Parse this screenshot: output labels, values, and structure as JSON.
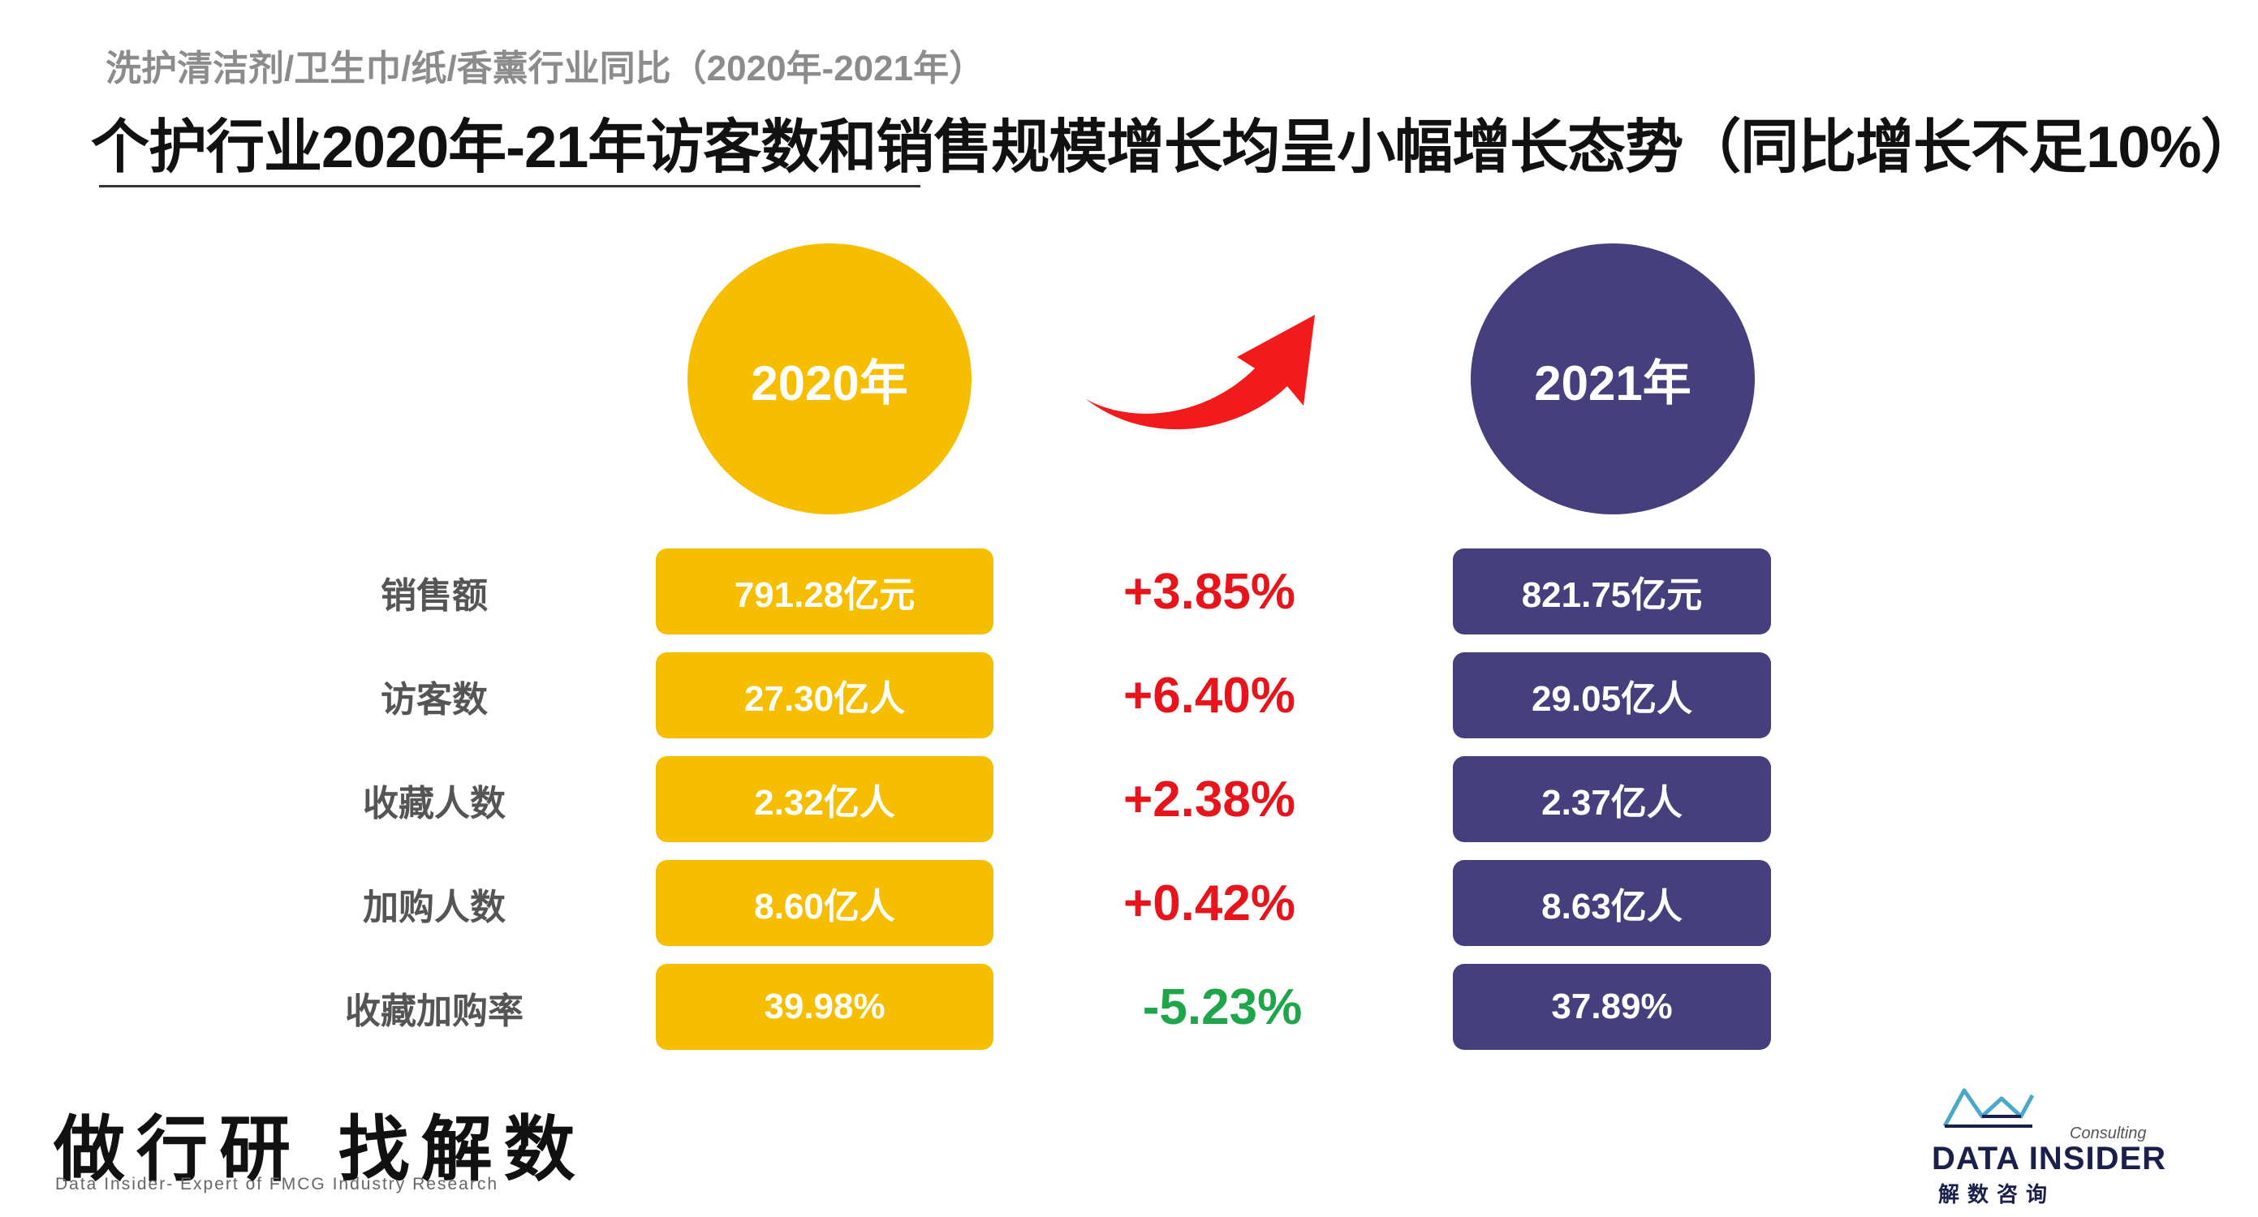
{
  "header": {
    "subtitle": "洗护清洁剂/卫生巾/纸/香薰行业同比（2020年-2021年）",
    "title": "个护行业2020年-21年访客数和销售规模增长均呈小幅增长态势（同比增长不足10%）"
  },
  "years": {
    "y2020": "2020年",
    "y2021": "2021年"
  },
  "rows": [
    {
      "label": "销售额",
      "v2020": "791.28亿元",
      "change": "+3.85%",
      "v2021": "821.75亿元"
    },
    {
      "label": "访客数",
      "v2020": "27.30亿人",
      "change": "+6.40%",
      "v2021": "29.05亿人"
    },
    {
      "label": "收藏人数",
      "v2020": "2.32亿人",
      "change": "+2.38%",
      "v2021": "2.37亿人"
    },
    {
      "label": "加购人数",
      "v2020": "8.60亿人",
      "change": "+0.42%",
      "v2021": "8.63亿人"
    },
    {
      "label": "收藏加购率",
      "v2020": "39.98%",
      "change": "-5.23%",
      "v2021": "37.89%"
    }
  ],
  "colors": {
    "color_2020": "#F7BE00",
    "color_2021": "#453F7E",
    "positive": "#E8141B",
    "negative": "#1FA64A",
    "arrow": "#F21B1B"
  },
  "footer": {
    "brand_cn": "做行研 找解数",
    "brand_en": "Data Insider- Expert of FMCG Industry Research",
    "logo_tag": "Consulting",
    "logo_name": "DATA INSIDER",
    "logo_cn": "解数咨询"
  },
  "icons": {
    "growth_arrow": "curved-arrow-up-right-icon",
    "logo": "data-insider-logo-icon"
  }
}
